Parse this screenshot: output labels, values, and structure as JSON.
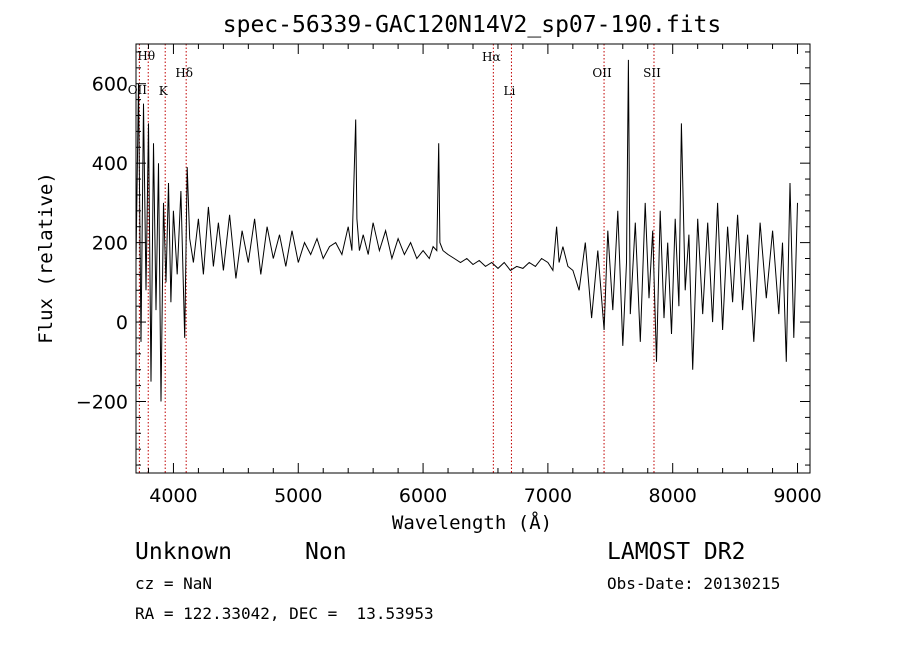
{
  "chart_data": {
    "type": "line",
    "title": "spec-56339-GAC120N14V2_sp07-190.fits",
    "xlabel": "Wavelength (Å)",
    "ylabel": "Flux (relative)",
    "xlim": [
      3700,
      9100
    ],
    "ylim": [
      -380,
      700
    ],
    "x_ticks": [
      4000,
      5000,
      6000,
      7000,
      8000,
      9000
    ],
    "y_ticks": [
      -200,
      0,
      200,
      400,
      600
    ],
    "x_tick_labels": [
      "4000",
      "5000",
      "6000",
      "7000",
      "8000",
      "9000"
    ],
    "y_tick_labels": [
      "−200",
      "0",
      "200",
      "400",
      "600"
    ],
    "grid": false,
    "legend": "none",
    "line_color": "#000000",
    "marker_line_color": "#c00000",
    "line_markers": [
      {
        "label": "Hθ",
        "x": 3798
      },
      {
        "label": "OII",
        "x": 3727
      },
      {
        "label": "K",
        "x": 3934
      },
      {
        "label": "Hδ",
        "x": 4102
      },
      {
        "label": "Hα",
        "x": 6563
      },
      {
        "label": "Li",
        "x": 6708
      },
      {
        "label": "OII",
        "x": 7450
      },
      {
        "label": "SII",
        "x": 7850
      }
    ],
    "series": [
      {
        "x": [
          3700,
          3720,
          3740,
          3760,
          3780,
          3800,
          3820,
          3840,
          3860,
          3880,
          3900,
          3920,
          3940,
          3960,
          3980,
          4000,
          4030,
          4060,
          4090,
          4110,
          4130,
          4160,
          4200,
          4240,
          4280,
          4320,
          4360,
          4400,
          4450,
          4500,
          4550,
          4600,
          4650,
          4700,
          4750,
          4800,
          4850,
          4900,
          4950,
          5000,
          5050,
          5100,
          5150,
          5200,
          5250,
          5300,
          5350,
          5400,
          5430,
          5460,
          5470,
          5490,
          5520,
          5560,
          5600,
          5650,
          5700,
          5750,
          5800,
          5850,
          5900,
          5950,
          6000,
          6050,
          6080,
          6110,
          6125,
          6135,
          6160,
          6200,
          6250,
          6300,
          6350,
          6400,
          6450,
          6500,
          6550,
          6600,
          6650,
          6700,
          6750,
          6800,
          6850,
          6900,
          6950,
          7000,
          7040,
          7070,
          7090,
          7120,
          7160,
          7200,
          7250,
          7300,
          7350,
          7400,
          7450,
          7480,
          7520,
          7560,
          7600,
          7630,
          7645,
          7660,
          7700,
          7740,
          7780,
          7810,
          7840,
          7870,
          7900,
          7930,
          7960,
          7990,
          8020,
          8050,
          8070,
          8100,
          8130,
          8160,
          8200,
          8240,
          8280,
          8320,
          8360,
          8400,
          8440,
          8480,
          8520,
          8560,
          8600,
          8650,
          8700,
          8750,
          8800,
          8850,
          8880,
          8910,
          8940,
          8970,
          9000
        ],
        "y": [
          150,
          600,
          -50,
          550,
          80,
          500,
          -150,
          450,
          30,
          400,
          -200,
          300,
          100,
          350,
          50,
          280,
          120,
          330,
          -40,
          390,
          210,
          150,
          260,
          120,
          290,
          140,
          250,
          130,
          270,
          110,
          230,
          150,
          260,
          120,
          240,
          160,
          220,
          140,
          230,
          150,
          200,
          170,
          210,
          160,
          190,
          200,
          170,
          240,
          180,
          510,
          260,
          180,
          220,
          170,
          250,
          180,
          230,
          160,
          210,
          170,
          200,
          160,
          180,
          160,
          190,
          180,
          450,
          200,
          180,
          170,
          160,
          150,
          160,
          145,
          155,
          140,
          150,
          135,
          150,
          130,
          140,
          135,
          150,
          140,
          160,
          150,
          130,
          240,
          150,
          190,
          140,
          130,
          80,
          200,
          10,
          180,
          -20,
          230,
          30,
          280,
          -60,
          150,
          660,
          20,
          250,
          -50,
          300,
          60,
          230,
          -100,
          280,
          10,
          200,
          -30,
          260,
          40,
          500,
          80,
          220,
          -120,
          260,
          20,
          250,
          0,
          300,
          -20,
          240,
          50,
          270,
          30,
          220,
          -50,
          250,
          60,
          230,
          20,
          200,
          -100,
          350,
          -40,
          300
        ]
      }
    ]
  },
  "info": {
    "object_class": "Unknown",
    "subclass": "Non",
    "survey": "LAMOST DR2",
    "cz": "cz = NaN",
    "obs_date": "Obs-Date: 20130215",
    "coords": "RA = 122.33042, DEC =  13.53953"
  }
}
